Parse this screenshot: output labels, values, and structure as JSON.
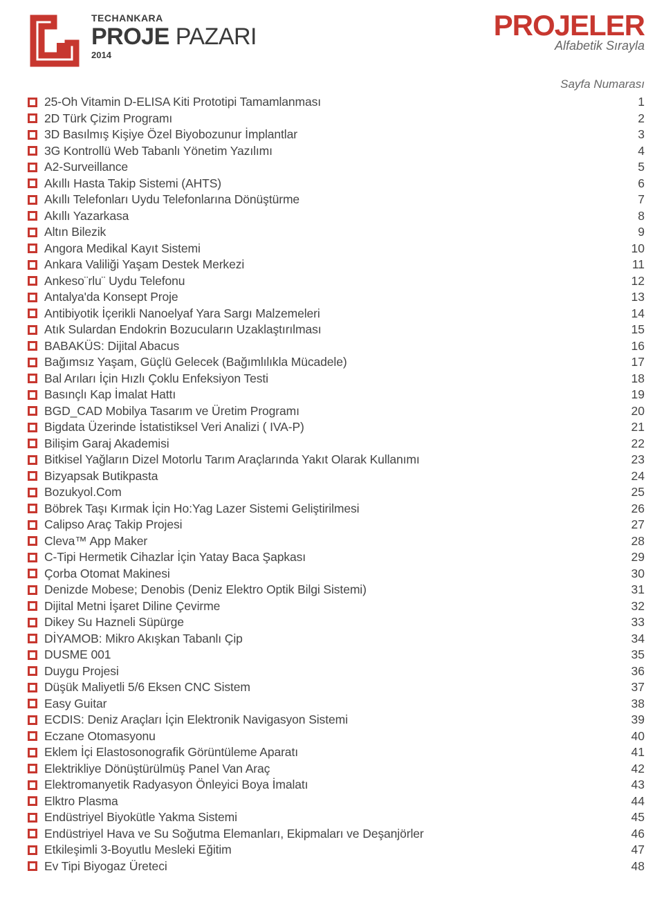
{
  "colors": {
    "accent": "#c7372f",
    "text": "#444444",
    "subtle": "#666666",
    "background": "#ffffff"
  },
  "header": {
    "tech_label": "TECHANKARA",
    "title_strong": "PROJE",
    "title_light": "PAZARI",
    "year": "2014",
    "right_title": "PROJELER",
    "right_subtitle": "Alfabetik Sırayla",
    "page_label": "Sayfa Numarası"
  },
  "typography": {
    "projeler_fontsize": 42,
    "subtitle_fontsize": 18,
    "logo_title_fontsize": 34,
    "row_fontsize": 17.5
  },
  "toc": [
    {
      "title": "25-Oh Vitamin D-ELISA Kiti Prototipi Tamamlanması",
      "page": "1"
    },
    {
      "title": "2D Türk Çizim Programı",
      "page": "2"
    },
    {
      "title": "3D Basılmış Kişiye Özel Biyobozunur İmplantlar",
      "page": "3"
    },
    {
      "title": "3G Kontrollü Web Tabanlı Yönetim Yazılımı",
      "page": "4"
    },
    {
      "title": "A2-Surveillance",
      "page": "5"
    },
    {
      "title": "Akıllı Hasta Takip Sistemi (AHTS)",
      "page": "6"
    },
    {
      "title": "Akıllı Telefonları Uydu Telefonlarına Dönüştürme",
      "page": "7"
    },
    {
      "title": "Akıllı Yazarkasa",
      "page": "8"
    },
    {
      "title": "Altın Bilezik",
      "page": "9"
    },
    {
      "title": "Angora Medikal Kayıt Sistemi",
      "page": "10"
    },
    {
      "title": "Ankara Valiliği Yaşam Destek Merkezi",
      "page": "11"
    },
    {
      "title": "Ankeso¨rlu¨ Uydu Telefonu",
      "page": "12"
    },
    {
      "title": "Antalya'da Konsept Proje",
      "page": "13"
    },
    {
      "title": "Antibiyotik İçerikli Nanoelyaf Yara Sargı Malzemeleri",
      "page": "14"
    },
    {
      "title": "Atık Sulardan Endokrin Bozucuların Uzaklaştırılması",
      "page": "15"
    },
    {
      "title": "BABAKÜS: Dijital Abacus",
      "page": "16"
    },
    {
      "title": "Bağımsız Yaşam, Güçlü Gelecek (Bağımlılıkla Mücadele)",
      "page": "17"
    },
    {
      "title": "Bal Arıları İçin Hızlı Çoklu Enfeksiyon Testi",
      "page": "18"
    },
    {
      "title": "Basınçlı Kap İmalat Hattı",
      "page": "19"
    },
    {
      "title": "BGD_CAD Mobilya Tasarım ve Üretim Programı",
      "page": "20"
    },
    {
      "title": "Bigdata Üzerinde İstatistiksel Veri Analizi ( IVA-P)",
      "page": "21"
    },
    {
      "title": "Bilişim Garaj Akademisi",
      "page": "22"
    },
    {
      "title": "Bitkisel Yağların Dizel Motorlu Tarım Araçlarında Yakıt Olarak Kullanımı",
      "page": "23"
    },
    {
      "title": "Bizyapsak Butikpasta",
      "page": "24"
    },
    {
      "title": "Bozukyol.Com",
      "page": "25"
    },
    {
      "title": "Böbrek Taşı Kırmak İçin Ho:Yag Lazer Sistemi Geliştirilmesi",
      "page": "26"
    },
    {
      "title": "Calipso Araç Takip Projesi",
      "page": "27"
    },
    {
      "title": "Cleva™ App Maker",
      "page": "28"
    },
    {
      "title": "C-Tipi Hermetik Cihazlar İçin Yatay Baca Şapkası",
      "page": "29"
    },
    {
      "title": "Çorba Otomat Makinesi",
      "page": "30"
    },
    {
      "title": "Denizde Mobese; Denobis (Deniz Elektro Optik Bilgi Sistemi)",
      "page": "31"
    },
    {
      "title": "Dijital Metni İşaret Diline Çevirme",
      "page": "32"
    },
    {
      "title": "Dikey Su Hazneli Süpürge",
      "page": "33"
    },
    {
      "title": "DİYAMOB: Mikro Akışkan Tabanlı Çip",
      "page": "34"
    },
    {
      "title": "DUSME 001",
      "page": "35"
    },
    {
      "title": "Duygu Projesi",
      "page": "36"
    },
    {
      "title": "Düşük Maliyetli 5/6 Eksen CNC Sistem",
      "page": "37"
    },
    {
      "title": "Easy Guitar",
      "page": "38"
    },
    {
      "title": "ECDIS: Deniz Araçları İçin Elektronik Navigasyon Sistemi",
      "page": "39"
    },
    {
      "title": "Eczane Otomasyonu",
      "page": "40"
    },
    {
      "title": "Eklem İçi Elastosonografik Görüntüleme Aparatı",
      "page": "41"
    },
    {
      "title": "Elektrikliye Dönüştürülmüş Panel Van Araç",
      "page": "42"
    },
    {
      "title": "Elektromanyetik Radyasyon Önleyici Boya İmalatı",
      "page": "43"
    },
    {
      "title": "Elktro Plasma",
      "page": "44"
    },
    {
      "title": "Endüstriyel Biyokütle Yakma Sistemi",
      "page": "45"
    },
    {
      "title": "Endüstriyel Hava ve Su Soğutma Elemanları, Ekipmaları ve Deşanjörler",
      "page": "46"
    },
    {
      "title": "Etkileşimli 3-Boyutlu Mesleki Eğitim",
      "page": "47"
    },
    {
      "title": "Ev Tipi Biyogaz Üreteci",
      "page": "48"
    }
  ]
}
